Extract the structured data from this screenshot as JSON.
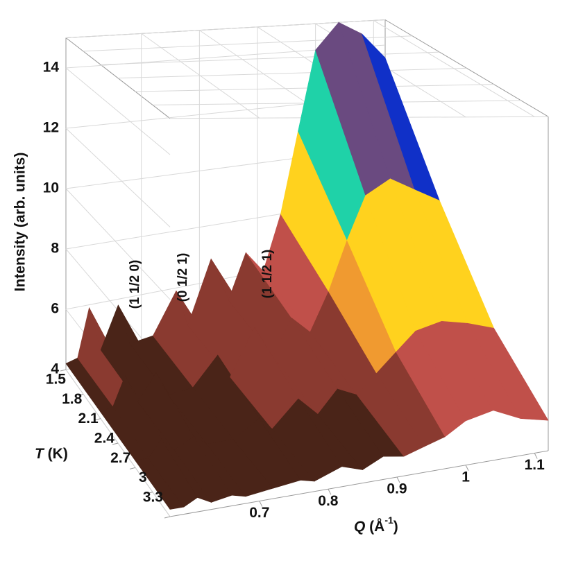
{
  "chart_data": {
    "type": "surface",
    "ylabel": "Intensity (arb. units)",
    "tlabel_var": "T",
    "tlabel_unit": " (K)",
    "xlabel_parts": [
      "Q",
      " (Å",
      "-1",
      ")"
    ],
    "annotations": [
      "(1 1/2 0)",
      "(0 1/2 1)",
      "(1 1/2 1)"
    ],
    "x": [
      0.57,
      0.59,
      0.61,
      0.63,
      0.66,
      0.68,
      0.72,
      0.76,
      0.78,
      0.82,
      0.85,
      0.88,
      0.91,
      0.94,
      0.97,
      1.0,
      1.04,
      1.08,
      1.12
    ],
    "xlim": [
      0.57,
      1.12
    ],
    "xticks": [
      0.7,
      0.8,
      0.9,
      1.0,
      1.1
    ],
    "t": [
      1.5,
      2.1,
      2.7,
      3.3
    ],
    "tlim": [
      1.5,
      3.3
    ],
    "tticks": [
      1.5,
      1.8,
      2.1,
      2.4,
      2.7,
      3.0,
      3.3
    ],
    "ylim": [
      4,
      15
    ],
    "yticks": [
      4,
      6,
      8,
      10,
      12,
      14
    ],
    "series": [
      {
        "name": "1.5",
        "values": [
          4.2,
          4.3,
          5.9,
          4.4,
          5.8,
          4.4,
          4.5,
          5.9,
          4.6,
          6.8,
          5.2,
          6.8,
          6.0,
          8.0,
          11,
          14,
          15,
          14.5,
          13.5
        ]
      },
      {
        "name": "2.1",
        "values": [
          4.2,
          4.3,
          5.2,
          4.3,
          5.1,
          4.3,
          4.4,
          5.3,
          4.5,
          6.0,
          4.9,
          6.1,
          5.5,
          6.8,
          8.5,
          10,
          10.5,
          10,
          9.5
        ]
      },
      {
        "name": "2.7",
        "values": [
          4.2,
          4.2,
          4.7,
          4.3,
          4.6,
          4.3,
          4.3,
          4.8,
          4.4,
          5.2,
          4.6,
          5.3,
          5.0,
          5.6,
          6.2,
          6.8,
          7.0,
          6.8,
          6.5
        ]
      },
      {
        "name": "3.3",
        "values": [
          4.2,
          4.2,
          4.4,
          4.2,
          4.3,
          4.2,
          4.3,
          4.4,
          4.3,
          4.6,
          4.4,
          4.7,
          4.6,
          4.8,
          5.0,
          5.4,
          5.6,
          5.2,
          5.0
        ]
      }
    ],
    "colormap": [
      "#4a2418",
      "#8a3a30",
      "#c0504a",
      "#f09a30",
      "#ffd21e",
      "#9fd7a0",
      "#1a5c50",
      "#1fd2a8",
      "#1030c8",
      "#6a4a80",
      "#e070b0",
      "#d0e4f0"
    ],
    "grid": true
  }
}
